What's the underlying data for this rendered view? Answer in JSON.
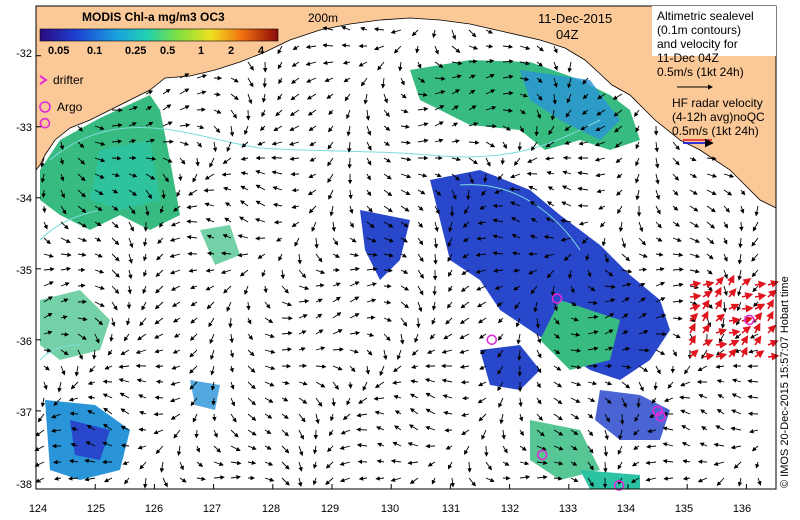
{
  "colorbar": {
    "title": "MODIS Chl-a mg/m3 OC3",
    "ticks": [
      "0.05",
      "0.1",
      "0.25",
      "0.5",
      "1",
      "2",
      "4"
    ]
  },
  "labels": {
    "isobath": "200m",
    "date": "11-Dec-2015",
    "time": "04Z",
    "drifter": "drifter",
    "argo": "Argo"
  },
  "legend": {
    "altimetry": [
      "Altimetric sealevel",
      "(0.1m contours)",
      "and velocity for",
      "11-Dec 04Z",
      "0.5m/s (1kt 24h)"
    ],
    "hf_radar": [
      "HF radar velocity",
      "(4-12h avg)noQC",
      "0.5m/s (1kt 24h)"
    ]
  },
  "credit": "© IMOS 20-Dec-2015 15:57:07 Hobart time",
  "axes": {
    "x_ticks": [
      "124",
      "125",
      "126",
      "127",
      "128",
      "129",
      "130",
      "131",
      "132",
      "133",
      "134",
      "135",
      "136"
    ],
    "y_ticks": [
      "-32",
      "-33",
      "-34",
      "-35",
      "-36",
      "-37",
      "-38"
    ]
  },
  "map_data": {
    "lon_range": [
      124,
      136.5
    ],
    "lat_range": [
      -38.1,
      -31.3
    ],
    "argo_floats": [
      {
        "lon": 124.15,
        "lat": -32.95
      },
      {
        "lon": 131.7,
        "lat": -36.0
      },
      {
        "lon": 132.8,
        "lat": -35.42
      },
      {
        "lon": 132.55,
        "lat": -37.62
      },
      {
        "lon": 134.5,
        "lat": -37.0
      },
      {
        "lon": 134.55,
        "lat": -37.08
      },
      {
        "lon": 133.85,
        "lat": -38.05
      },
      {
        "lon": 136.05,
        "lat": -35.72
      }
    ],
    "colors": {
      "land": "#fbc897",
      "ocean": "#ffffff",
      "low_chl": "#1e3ec8",
      "mid_chl": "#1e8fd6",
      "high_chl": "#2db87a",
      "hf_radar_arrow": "#e0141e",
      "argo": "#e02bd8",
      "contour": "#7fdcdc"
    }
  }
}
